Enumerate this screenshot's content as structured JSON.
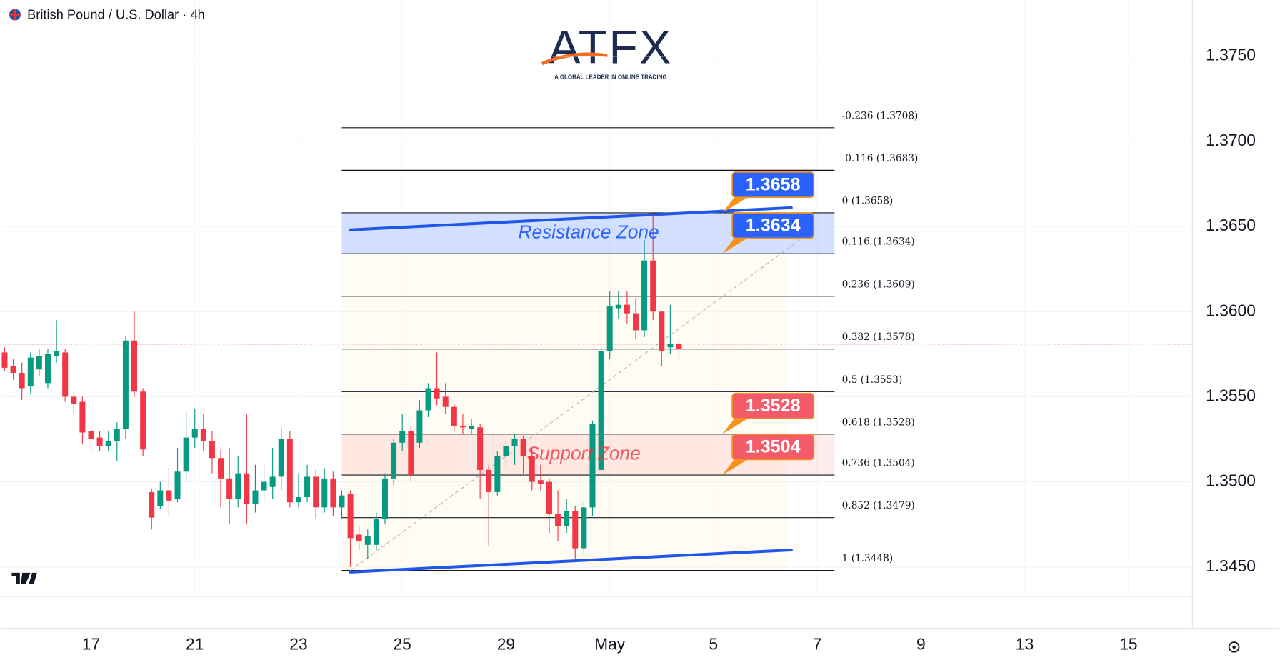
{
  "header": {
    "title": "British Pound / U.S. Dollar · 4h"
  },
  "logo": {
    "name": "ATFX",
    "tagline": "A GLOBAL LEADER IN ONLINE TRADING"
  },
  "chart_data": {
    "type": "candlestick",
    "open": [
      1.3576,
      1.3568,
      1.3564,
      1.3556,
      1.3566,
      1.3558,
      1.3574,
      1.3576,
      1.355,
      1.3547,
      1.353,
      1.3526,
      1.3521,
      1.3524,
      1.3531,
      1.3583,
      1.3553,
      1.3494,
      1.3486,
      1.3495,
      1.349,
      1.3506,
      1.3526,
      1.3531,
      1.3524,
      1.3514,
      1.3502,
      1.349,
      1.3505,
      1.3487,
      1.3495,
      1.3497,
      1.3503,
      1.3525,
      1.3488,
      1.3491,
      1.3503,
      1.3485,
      1.3502,
      1.3485,
      1.3493,
      1.3469,
      1.3463,
      1.3463,
      1.3478,
      1.3502,
      1.3523,
      1.353,
      1.3523,
      1.3542,
      1.3555,
      1.355,
      1.3544,
      1.3533,
      1.3531,
      1.3532,
      1.3507,
      1.3494,
      1.3515,
      1.3521,
      1.3525,
      1.3515,
      1.3501,
      1.35,
      1.3481,
      1.3474,
      1.3483,
      1.3461,
      1.3485,
      1.3507,
      1.3577,
      1.3602,
      1.3604,
      1.3599,
      1.3589,
      1.363,
      1.36,
      1.3579,
      1.3581
    ],
    "high": [
      1.3579,
      1.3572,
      1.357,
      1.3576,
      1.3578,
      1.3578,
      1.3595,
      1.3578,
      1.3552,
      1.355,
      1.3533,
      1.353,
      1.353,
      1.3535,
      1.3586,
      1.36,
      1.3555,
      1.3496,
      1.35,
      1.3508,
      1.352,
      1.3542,
      1.3543,
      1.354,
      1.353,
      1.3519,
      1.352,
      1.3515,
      1.354,
      1.351,
      1.351,
      1.352,
      1.3532,
      1.353,
      1.3505,
      1.351,
      1.3507,
      1.3508,
      1.3506,
      1.3495,
      1.3495,
      1.3474,
      1.3472,
      1.3482,
      1.3505,
      1.3525,
      1.354,
      1.3533,
      1.3548,
      1.3558,
      1.3576,
      1.3558,
      1.3546,
      1.354,
      1.3537,
      1.3534,
      1.351,
      1.3518,
      1.3524,
      1.3528,
      1.3527,
      1.352,
      1.351,
      1.3502,
      1.3495,
      1.349,
      1.3486,
      1.3488,
      1.3536,
      1.358,
      1.3612,
      1.3612,
      1.3612,
      1.3608,
      1.3642,
      1.3657,
      1.36,
      1.3604,
      1.3583
    ],
    "low": [
      1.3565,
      1.356,
      1.3548,
      1.3552,
      1.3562,
      1.3555,
      1.357,
      1.3547,
      1.354,
      1.3522,
      1.3518,
      1.3518,
      1.3518,
      1.3512,
      1.3525,
      1.355,
      1.3515,
      1.3472,
      1.3484,
      1.348,
      1.3488,
      1.35,
      1.352,
      1.3518,
      1.3505,
      1.3485,
      1.3475,
      1.3485,
      1.3475,
      1.3482,
      1.3488,
      1.349,
      1.3495,
      1.3485,
      1.3485,
      1.3488,
      1.3478,
      1.3482,
      1.348,
      1.3478,
      1.345,
      1.346,
      1.3455,
      1.346,
      1.3475,
      1.3498,
      1.3518,
      1.35,
      1.352,
      1.3538,
      1.3545,
      1.354,
      1.353,
      1.3528,
      1.3528,
      1.349,
      1.3462,
      1.3492,
      1.3508,
      1.351,
      1.3505,
      1.3495,
      1.3495,
      1.347,
      1.3465,
      1.347,
      1.3455,
      1.3458,
      1.348,
      1.3505,
      1.3572,
      1.3596,
      1.3593,
      1.3584,
      1.3585,
      1.3595,
      1.3568,
      1.3575,
      1.3572
    ],
    "close": [
      1.3567,
      1.3564,
      1.3555,
      1.3573,
      1.3574,
      1.3575,
      1.3577,
      1.355,
      1.3546,
      1.3529,
      1.3525,
      1.3521,
      1.3524,
      1.3531,
      1.3583,
      1.3553,
      1.3519,
      1.3479,
      1.3495,
      1.3489,
      1.3506,
      1.3526,
      1.3531,
      1.3524,
      1.3514,
      1.3502,
      1.349,
      1.3505,
      1.3487,
      1.3495,
      1.35,
      1.3503,
      1.3525,
      1.3488,
      1.3491,
      1.3503,
      1.3485,
      1.3502,
      1.3485,
      1.3492,
      1.3467,
      1.3465,
      1.3468,
      1.3478,
      1.3502,
      1.3523,
      1.353,
      1.3504,
      1.3542,
      1.3555,
      1.3549,
      1.3544,
      1.3533,
      1.3532,
      1.3533,
      1.3507,
      1.3494,
      1.3515,
      1.3521,
      1.3525,
      1.3515,
      1.35,
      1.3499,
      1.3481,
      1.3474,
      1.3483,
      1.3461,
      1.3485,
      1.3534,
      1.3577,
      1.3603,
      1.3604,
      1.3599,
      1.3589,
      1.363,
      1.36,
      1.3577,
      1.3581,
      1.3578
    ],
    "up_color": "#089981",
    "down_color": "#f23645",
    "xlim": [
      -0.5,
      137.3
    ],
    "xticks": [
      {
        "value": 10,
        "label": "17"
      },
      {
        "value": 22,
        "label": "21"
      },
      {
        "value": 34,
        "label": "23"
      },
      {
        "value": 46,
        "label": "25"
      },
      {
        "value": 58,
        "label": "29"
      },
      {
        "value": 70,
        "label": "May"
      },
      {
        "value": 82,
        "label": "5"
      },
      {
        "value": 94,
        "label": "7"
      },
      {
        "value": 106,
        "label": "9"
      },
      {
        "value": 118,
        "label": "13"
      },
      {
        "value": 130,
        "label": "15"
      }
    ],
    "ylim": [
      1.3414,
      1.3783
    ],
    "yticks": [
      {
        "value": 1.375,
        "label": "1.3750"
      },
      {
        "value": 1.37,
        "label": "1.3700"
      },
      {
        "value": 1.365,
        "label": "1.3650"
      },
      {
        "value": 1.36,
        "label": "1.3600"
      },
      {
        "value": 1.355,
        "label": "1.3550"
      },
      {
        "value": 1.35,
        "label": "1.3500"
      },
      {
        "value": 1.345,
        "label": "1.3450"
      }
    ],
    "grid": true,
    "fibonacci": {
      "x": [
        39,
        96
      ],
      "levels": [
        {
          "value": 1.3708,
          "label": "-0.236 (1.3708)"
        },
        {
          "value": 1.3683,
          "label": "-0.116 (1.3683)"
        },
        {
          "value": 1.3658,
          "label": "0 (1.3658)"
        },
        {
          "value": 1.3634,
          "label": "0.116 (1.3634)"
        },
        {
          "value": 1.3609,
          "label": "0.236 (1.3609)"
        },
        {
          "value": 1.3578,
          "label": "0.382 (1.3578)"
        },
        {
          "value": 1.3553,
          "label": "0.5 (1.3553)"
        },
        {
          "value": 1.3528,
          "label": "0.618 (1.3528)"
        },
        {
          "value": 1.3504,
          "label": "0.736 (1.3504)"
        },
        {
          "value": 1.3479,
          "label": "0.852 (1.3479)"
        },
        {
          "value": 1.3448,
          "label": "1 (1.3448)"
        }
      ]
    },
    "zones": [
      {
        "label": "Resistance Zone",
        "range": [
          1.3634,
          1.3658
        ],
        "color": "#2962ff"
      },
      {
        "label": "Support Zone",
        "range": [
          1.3504,
          1.3528
        ],
        "color": "#f23645"
      }
    ],
    "callouts": [
      {
        "value": 1.3658,
        "color": "#2962ff"
      },
      {
        "value": 1.3634,
        "color": "#2962ff"
      },
      {
        "value": 1.3528,
        "color": "#f45b69"
      },
      {
        "value": 1.3504,
        "color": "#f45b69"
      }
    ],
    "trendlines": [
      {
        "x": [
          40,
          91
        ],
        "y": [
          1.3648,
          1.3661
        ],
        "color": "#2157e8",
        "style": "solid"
      },
      {
        "x": [
          40,
          91
        ],
        "y": [
          1.3447,
          1.346
        ],
        "color": "#2157e8",
        "style": "solid"
      },
      {
        "x": [
          40,
          93
        ],
        "y": [
          1.3448,
          1.3646
        ],
        "color": "#b8b8b8",
        "style": "dashed"
      }
    ]
  }
}
